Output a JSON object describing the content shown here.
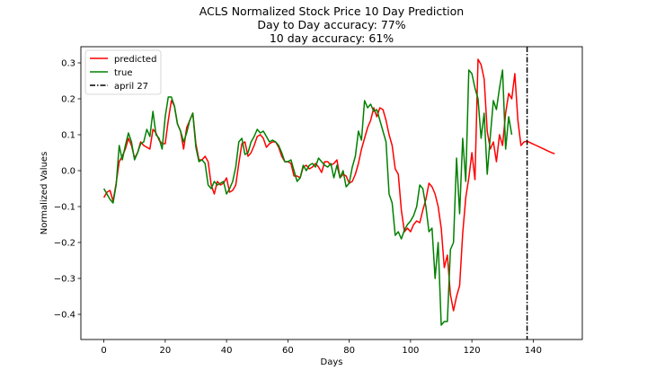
{
  "chart_data": {
    "type": "line",
    "title_lines": [
      "ACLS Normalized Stock Price 10 Day Prediction",
      "Day to Day accuracy: 77%",
      "10 day accuracy: 61%"
    ],
    "xlabel": "Days",
    "ylabel": "Normalized Values",
    "xlim": [
      -7.5,
      156
    ],
    "ylim": [
      -0.47,
      0.345
    ],
    "x_ticks": [
      0,
      20,
      40,
      60,
      80,
      100,
      120,
      140
    ],
    "y_ticks": [
      -0.4,
      -0.3,
      -0.2,
      -0.1,
      0.0,
      0.1,
      0.2,
      0.3
    ],
    "y_tick_labels": [
      "−0.4",
      "−0.3",
      "−0.2",
      "−0.1",
      "0.0",
      "0.1",
      "0.2",
      "0.3"
    ],
    "grid": false,
    "legend_position": "top-left",
    "colors": {
      "predicted": "#ff0000",
      "true": "#008000",
      "vline": "#000000"
    },
    "series": [
      {
        "name": "predicted",
        "color": "#ff0000",
        "x_start": 0,
        "values": [
          -0.075,
          -0.06,
          -0.055,
          -0.085,
          -0.035,
          0.025,
          0.04,
          0.06,
          0.09,
          0.07,
          0.035,
          0.05,
          0.08,
          0.07,
          0.065,
          0.06,
          0.115,
          0.105,
          0.085,
          0.075,
          0.075,
          0.14,
          0.195,
          0.18,
          0.13,
          0.11,
          0.06,
          0.12,
          0.14,
          0.16,
          0.075,
          0.03,
          0.03,
          0.04,
          0.025,
          -0.04,
          -0.065,
          -0.03,
          -0.04,
          -0.035,
          -0.02,
          -0.06,
          -0.055,
          -0.04,
          0.02,
          0.075,
          0.08,
          0.04,
          0.05,
          0.07,
          0.095,
          0.1,
          0.09,
          0.065,
          0.075,
          0.08,
          0.08,
          0.065,
          0.04,
          0.025,
          0.025,
          0.02,
          -0.015,
          -0.015,
          -0.02,
          0.01,
          0.015,
          0.005,
          0.01,
          0.02,
          0.01,
          -0.005,
          0.025,
          0.025,
          0.015,
          0.02,
          0.03,
          -0.02,
          -0.01,
          -0.015,
          -0.035,
          -0.03,
          -0.01,
          0.02,
          0.06,
          0.09,
          0.12,
          0.14,
          0.175,
          0.15,
          0.175,
          0.17,
          0.14,
          0.1,
          0.07,
          0.005,
          -0.01,
          -0.11,
          -0.17,
          -0.16,
          -0.17,
          -0.15,
          -0.14,
          -0.145,
          -0.11,
          -0.08,
          -0.035,
          -0.045,
          -0.065,
          -0.1,
          -0.16,
          -0.27,
          -0.235,
          -0.345,
          -0.39,
          -0.35,
          -0.32,
          -0.175,
          -0.075,
          -0.02,
          0.05,
          -0.025,
          0.31,
          0.295,
          0.255,
          0.11,
          0.06,
          0.08,
          0.025,
          0.1,
          0.07,
          0.16,
          0.215,
          0.2,
          0.27,
          0.14,
          0.07,
          0.08,
          0.082,
          0.078,
          0.074,
          0.07,
          0.066,
          0.062,
          0.058,
          0.054,
          0.05,
          0.047
        ]
      },
      {
        "name": "true",
        "color": "#008000",
        "x_start": 0,
        "values": [
          -0.05,
          -0.065,
          -0.08,
          -0.09,
          -0.04,
          0.07,
          0.03,
          0.07,
          0.105,
          0.08,
          0.03,
          0.05,
          0.075,
          0.08,
          0.115,
          0.095,
          0.165,
          0.1,
          0.09,
          0.06,
          0.15,
          0.205,
          0.205,
          0.18,
          0.13,
          0.11,
          0.08,
          0.105,
          0.14,
          0.16,
          0.065,
          0.025,
          0.03,
          0.02,
          -0.04,
          -0.05,
          -0.03,
          -0.04,
          -0.035,
          -0.03,
          -0.065,
          -0.05,
          -0.03,
          0.01,
          0.08,
          0.09,
          0.045,
          0.05,
          0.08,
          0.095,
          0.115,
          0.105,
          0.11,
          0.095,
          0.08,
          0.085,
          0.08,
          0.07,
          0.05,
          0.025,
          0.025,
          0.03,
          0.0,
          -0.03,
          -0.02,
          0.015,
          0.0,
          0.015,
          0.02,
          0.01,
          0.035,
          0.025,
          0.015,
          0.01,
          0.02,
          -0.02,
          0.015,
          -0.02,
          0.0,
          -0.045,
          -0.035,
          0.01,
          0.04,
          0.11,
          0.085,
          0.195,
          0.175,
          0.185,
          0.165,
          0.17,
          0.14,
          0.11,
          0.08,
          -0.065,
          -0.09,
          -0.18,
          -0.17,
          -0.19,
          -0.165,
          -0.15,
          -0.14,
          -0.125,
          -0.1,
          -0.04,
          -0.05,
          -0.1,
          -0.17,
          -0.16,
          -0.3,
          -0.2,
          -0.43,
          -0.42,
          -0.42,
          -0.22,
          -0.2,
          0.035,
          -0.12,
          0.09,
          -0.03,
          0.28,
          0.27,
          0.23,
          0.2,
          0.09,
          0.16,
          -0.01,
          0.095,
          0.195,
          0.17,
          0.23,
          0.28,
          0.06,
          0.15,
          0.1
        ]
      }
    ],
    "vline": {
      "x": 138,
      "label": "april 27",
      "style": "dashdot"
    }
  }
}
